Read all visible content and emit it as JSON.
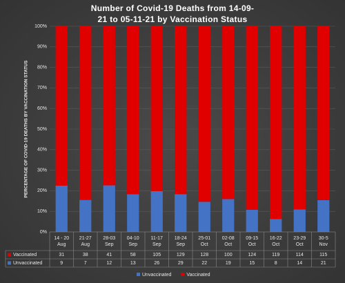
{
  "chart_data": {
    "type": "bar",
    "stacked": "percent",
    "title": "Number of Covid-19 Deaths from 14-09-21 to 05-11-21 by Vaccination Status",
    "y_label": "PERCENTAGE OF COVID-19 DEATHS BY VACCINATION STATUS",
    "categories": [
      "14 - 20 Aug",
      "21-27 Aug",
      "28-03 Sep",
      "04-10 Sep",
      "11-17 Sep",
      "18-24 Sep",
      "25-01 Oct",
      "02-08 Oct",
      "09-15 Oct",
      "16-22 Oct",
      "23-29 Oct",
      "30-5 Nov"
    ],
    "series": [
      {
        "name": "Unvaccinated",
        "color": "#4472c4",
        "values": [
          9,
          7,
          12,
          13,
          26,
          29,
          22,
          19,
          15,
          8,
          14,
          21
        ]
      },
      {
        "name": "Vaccinated",
        "color": "#e00000",
        "values": [
          31,
          38,
          41,
          58,
          105,
          129,
          128,
          100,
          124,
          119,
          114,
          115
        ]
      }
    ],
    "ylim": [
      0,
      100
    ],
    "yticks": [
      {
        "value": 0,
        "label": "0%"
      },
      {
        "value": 10,
        "label": "10%"
      },
      {
        "value": 20,
        "label": "20%"
      },
      {
        "value": 30,
        "label": "30%"
      },
      {
        "value": 40,
        "label": "40%"
      },
      {
        "value": 50,
        "label": "50%"
      },
      {
        "value": 60,
        "label": "60%"
      },
      {
        "value": 70,
        "label": "70%"
      },
      {
        "value": 80,
        "label": "80%"
      },
      {
        "value": 90,
        "label": "90%"
      },
      {
        "value": 100,
        "label": "100%"
      }
    ],
    "grid": true
  }
}
